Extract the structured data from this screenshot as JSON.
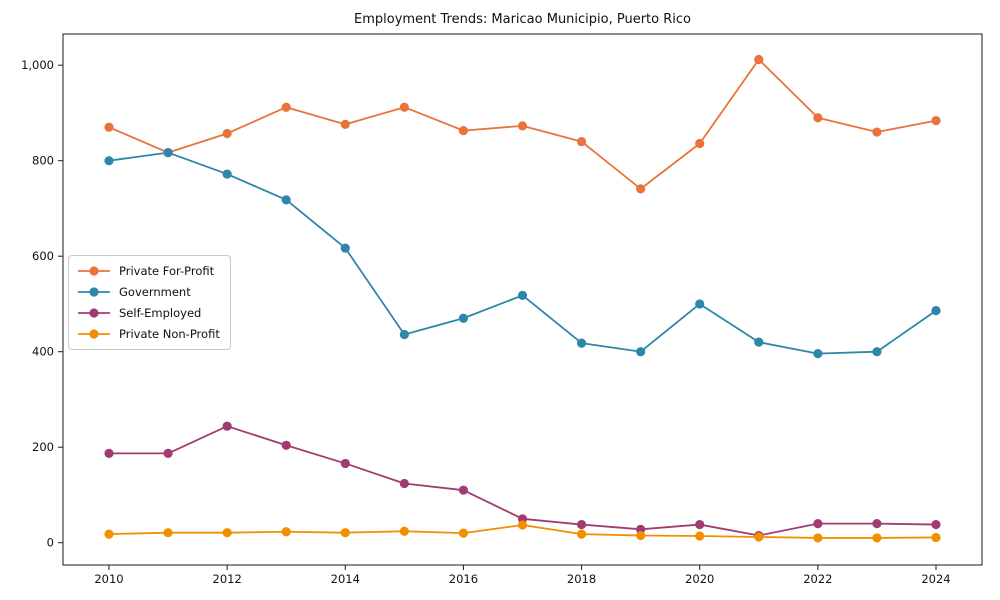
{
  "chart_data": {
    "type": "line",
    "title": "Employment Trends: Maricao Municipio, Puerto Rico",
    "xlabel": "",
    "ylabel": "",
    "grid": false,
    "legend_position": "center left",
    "x": [
      2010,
      2011,
      2012,
      2013,
      2014,
      2015,
      2016,
      2017,
      2018,
      2019,
      2020,
      2021,
      2022,
      2023,
      2024
    ],
    "xtick_labels": [
      "2010",
      "2012",
      "2014",
      "2016",
      "2018",
      "2020",
      "2022",
      "2024"
    ],
    "ytick_values": [
      0,
      200,
      400,
      600,
      800,
      1000
    ],
    "ytick_labels": [
      "0",
      "200",
      "400",
      "600",
      "800",
      "1,000"
    ],
    "ylim": [
      -45,
      1065
    ],
    "series": [
      {
        "name": "Private For-Profit",
        "color": "#E8743B",
        "values": [
          870,
          817,
          857,
          912,
          876,
          912,
          863,
          873,
          840,
          741,
          836,
          1012,
          890,
          860,
          884
        ]
      },
      {
        "name": "Government",
        "color": "#2E86AB",
        "values": [
          800,
          817,
          772,
          718,
          617,
          436,
          470,
          518,
          418,
          400,
          500,
          420,
          396,
          400,
          486
        ]
      },
      {
        "name": "Self-Employed",
        "color": "#A23B72",
        "values": [
          187,
          187,
          244,
          204,
          166,
          124,
          110,
          50,
          38,
          28,
          38,
          15,
          40,
          40,
          38
        ]
      },
      {
        "name": "Private Non-Profit",
        "color": "#F18F01",
        "values": [
          18,
          21,
          21,
          23,
          21,
          24,
          20,
          37,
          18,
          15,
          14,
          12,
          10,
          10,
          11
        ]
      }
    ]
  }
}
